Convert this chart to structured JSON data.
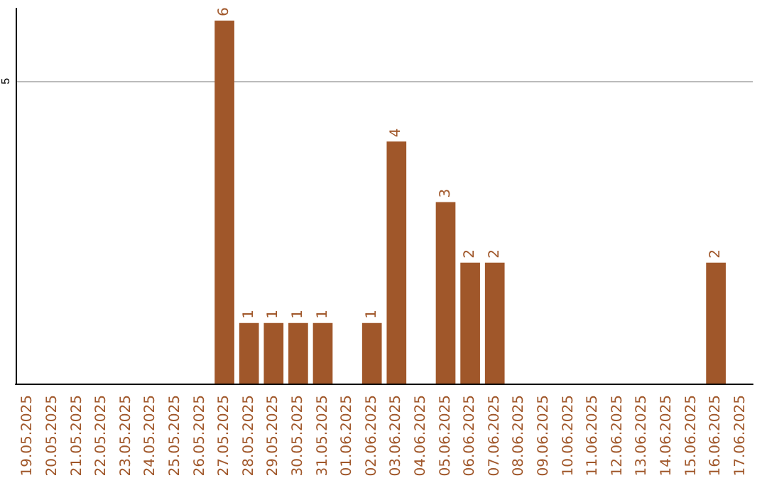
{
  "chart_data": {
    "type": "bar",
    "categories": [
      "19.05.2025",
      "20.05.2025",
      "21.05.2025",
      "22.05.2025",
      "23.05.2025",
      "24.05.2025",
      "25.05.2025",
      "26.05.2025",
      "27.05.2025",
      "28.05.2025",
      "29.05.2025",
      "30.05.2025",
      "31.05.2025",
      "01.06.2025",
      "02.06.2025",
      "03.06.2025",
      "04.06.2025",
      "05.06.2025",
      "06.06.2025",
      "07.06.2025",
      "08.06.2025",
      "09.06.2025",
      "10.06.2025",
      "11.06.2025",
      "12.06.2025",
      "13.06.2025",
      "14.06.2025",
      "15.06.2025",
      "16.06.2025",
      "17.06.2025"
    ],
    "values": [
      0,
      0,
      0,
      0,
      0,
      0,
      0,
      0,
      6,
      1,
      1,
      1,
      1,
      0,
      1,
      4,
      0,
      3,
      2,
      2,
      0,
      0,
      0,
      0,
      0,
      0,
      0,
      0,
      2,
      0
    ],
    "value_labels": [
      null,
      null,
      null,
      null,
      null,
      null,
      null,
      null,
      "6",
      "1",
      "1",
      "1",
      "1",
      null,
      "1",
      "4",
      null,
      "3",
      "2",
      "2",
      null,
      null,
      null,
      null,
      null,
      null,
      null,
      null,
      "2",
      null
    ],
    "color": "#a0572a",
    "ylim": [
      0,
      6.2
    ],
    "yticks": [
      {
        "value": 0,
        "label": null
      },
      5
    ],
    "grid": "y"
  }
}
